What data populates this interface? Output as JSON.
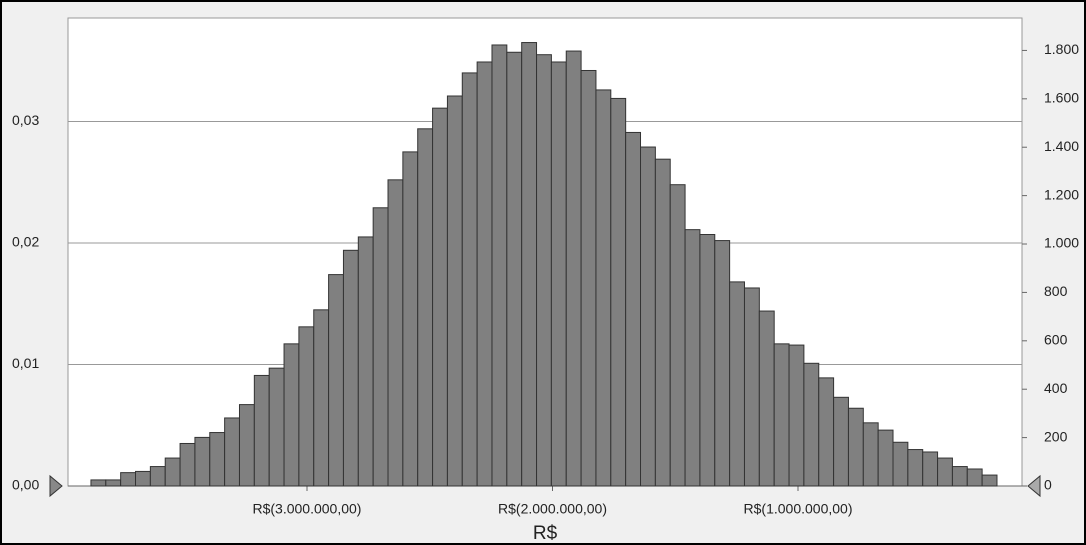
{
  "chart_data": {
    "type": "histogram",
    "xlabel": "R$",
    "bins": [
      -3880000,
      -3819500,
      -3759000,
      -3698500,
      -3638000,
      -3577500,
      -3517000,
      -3456500,
      -3396000,
      -3335500,
      -3275000,
      -3214500,
      -3154000,
      -3093500,
      -3033000,
      -2972500,
      -2912000,
      -2851500,
      -2791000,
      -2730500,
      -2670000,
      -2609500,
      -2549000,
      -2488500,
      -2428000,
      -2367500,
      -2307000,
      -2246500,
      -2186000,
      -2125500,
      -2065000,
      -2004500,
      -1944000,
      -1883500,
      -1823000,
      -1762500,
      -1702000,
      -1641500,
      -1581000,
      -1520500,
      -1460000,
      -1399500,
      -1339000,
      -1278500,
      -1218000,
      -1157500,
      -1097000,
      -1036500,
      -976000,
      -915500,
      -855000,
      -794500,
      -734000,
      -673500,
      -613000,
      -552500,
      -492000,
      -431500,
      -371000,
      -310500,
      -250000,
      -189500
    ],
    "values": [
      0.0005,
      0.0005,
      0.0011,
      0.0012,
      0.0016,
      0.0023,
      0.0035,
      0.004,
      0.0044,
      0.0056,
      0.0067,
      0.0091,
      0.0097,
      0.0117,
      0.0131,
      0.0145,
      0.0174,
      0.0194,
      0.0205,
      0.0229,
      0.0252,
      0.0275,
      0.0294,
      0.0311,
      0.0321,
      0.034,
      0.0349,
      0.0363,
      0.0357,
      0.0365,
      0.0355,
      0.0349,
      0.0358,
      0.0342,
      0.0326,
      0.0319,
      0.0291,
      0.0279,
      0.0269,
      0.0248,
      0.0211,
      0.0207,
      0.0202,
      0.0168,
      0.0163,
      0.0144,
      0.0117,
      0.0116,
      0.0101,
      0.0089,
      0.0073,
      0.0064,
      0.0052,
      0.0046,
      0.0036,
      0.003,
      0.0028,
      0.0023,
      0.0016,
      0.0014,
      0.0009
    ],
    "color": "#808080",
    "xlim": [
      -3973500,
      -87600
    ],
    "xticks": [
      {
        "value": -3000000,
        "label": "R$(3.000.000,00)"
      },
      {
        "value": -2000000,
        "label": "R$(2.000.000,00)"
      },
      {
        "value": -1000000,
        "label": "R$(1.000.000,00)"
      }
    ],
    "ylim": [
      0,
      0.03852
    ],
    "yticks": [
      {
        "value": 0,
        "label": "0,00"
      },
      {
        "value": 0.01,
        "label": "0,01"
      },
      {
        "value": 0.02,
        "label": "0,02"
      },
      {
        "value": 0.03,
        "label": "0,03"
      }
    ],
    "y2lim": [
      0,
      1934
    ],
    "y2ticks": [
      0,
      200,
      400,
      600,
      800,
      {
        "value": 1000,
        "label": "1.000"
      },
      {
        "value": 1200,
        "label": "1.200"
      },
      {
        "value": 1400,
        "label": "1.400"
      },
      {
        "value": 1600,
        "label": "1.600"
      },
      {
        "value": 1800,
        "label": "1.800"
      }
    ],
    "grid": true
  }
}
